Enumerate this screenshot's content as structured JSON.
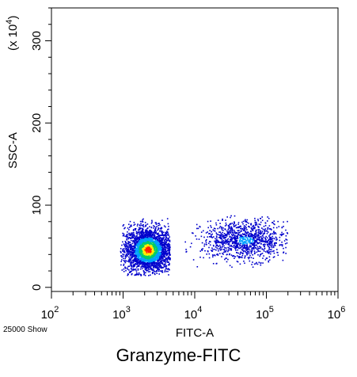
{
  "chart_data": {
    "type": "scatter",
    "style": "density-dot-plot",
    "title": "",
    "xlabel": "FITC-A",
    "ylabel": "SSC-A",
    "y_multiplier_label": "(x 10",
    "y_multiplier_exp": "4",
    "x_scale": "log",
    "xlim": [
      100,
      1000000
    ],
    "ylim": [
      -5,
      340
    ],
    "x_ticks": [
      {
        "value": 100,
        "base": "10",
        "exp": "2"
      },
      {
        "value": 1000,
        "base": "10",
        "exp": "3"
      },
      {
        "value": 10000,
        "base": "10",
        "exp": "4"
      },
      {
        "value": 100000,
        "base": "10",
        "exp": "5"
      },
      {
        "value": 1000000,
        "base": "10",
        "exp": "6"
      }
    ],
    "y_ticks": [
      0,
      100,
      200,
      300
    ],
    "event_count_label": "25000 Show",
    "grid": false,
    "density_colors": [
      "#0000cc",
      "#00a0ff",
      "#00cc66",
      "#ffee00",
      "#ff2200"
    ],
    "populations": [
      {
        "name": "",
        "x_center": 2200,
        "x_spread_log": 0.17,
        "y_center": 46,
        "y_spread": 14,
        "x_range": [
          900,
          4500
        ],
        "y_range": [
          15,
          86
        ],
        "density": "high"
      },
      {
        "name": "",
        "x_center": 50000,
        "x_spread_log": 0.3,
        "y_center": 58,
        "y_spread": 12,
        "x_range": [
          4000,
          200000
        ],
        "y_range": [
          25,
          88
        ],
        "density": "low"
      }
    ]
  },
  "caption": "Granzyme-FITC"
}
